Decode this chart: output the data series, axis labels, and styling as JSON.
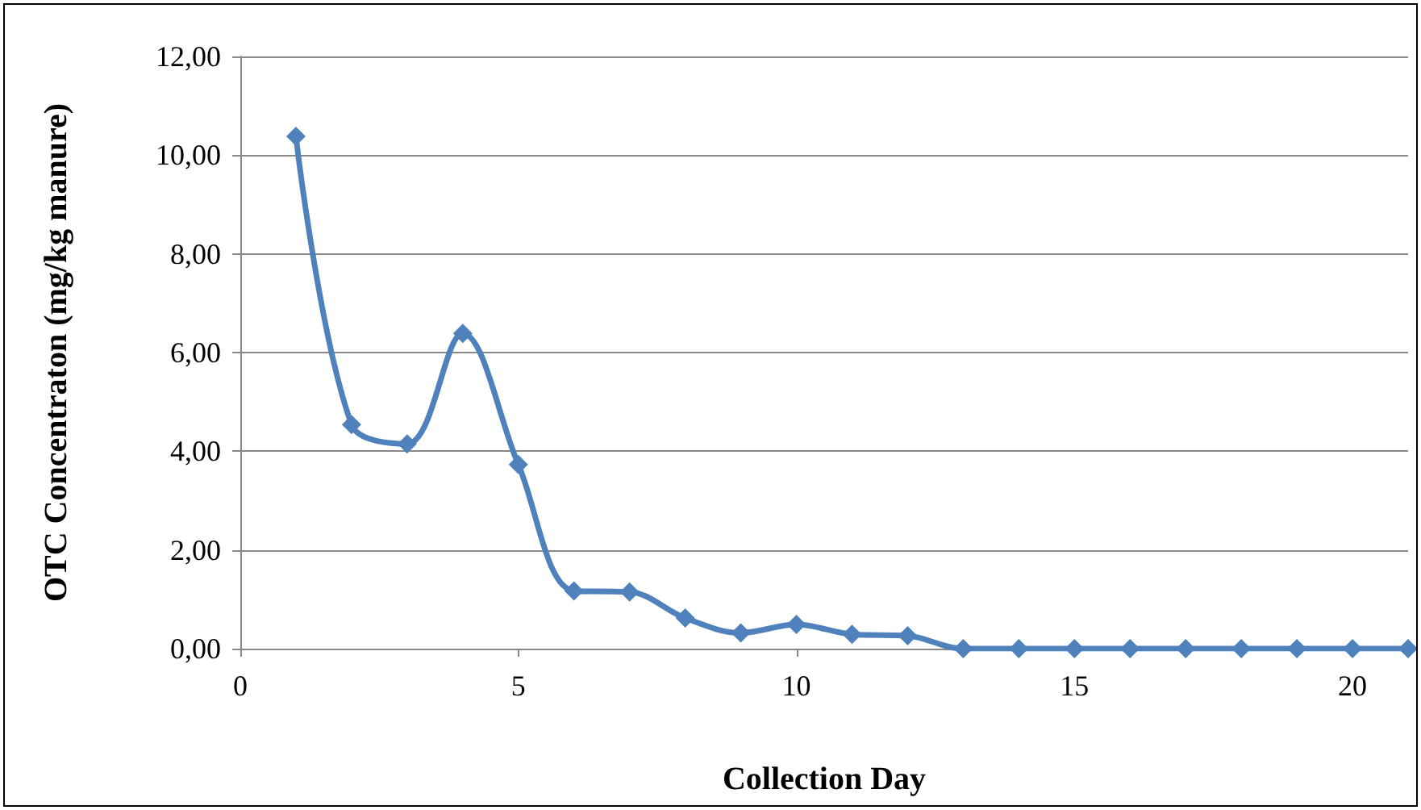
{
  "chart_data": {
    "type": "line",
    "xlabel": "Collection Day",
    "ylabel": "OTC Concentraton (mg/kg manure)",
    "x": [
      1,
      2,
      3,
      4,
      5,
      6,
      7,
      8,
      9,
      10,
      11,
      12,
      13,
      14,
      15,
      16,
      17,
      18,
      19,
      20,
      21
    ],
    "series": [
      {
        "color": "#4f81bd",
        "values": [
          10.38,
          4.54,
          4.15,
          6.39,
          3.73,
          1.17,
          1.15,
          0.62,
          0.32,
          0.49,
          0.29,
          0.26,
          0,
          0,
          0,
          0,
          0,
          0,
          0,
          0,
          0
        ]
      }
    ],
    "xlim": [
      0,
      21
    ],
    "xticks": [
      0,
      5,
      10,
      15,
      20
    ],
    "ylim": [
      0,
      12
    ],
    "yticks": [
      {
        "value": 0,
        "label": "0,00"
      },
      {
        "value": 2,
        "label": "2,00"
      },
      {
        "value": 4,
        "label": "4,00"
      },
      {
        "value": 6,
        "label": "6,00"
      },
      {
        "value": 8,
        "label": "8,00"
      },
      {
        "value": 10,
        "label": "10,00"
      },
      {
        "value": 12,
        "label": "12,00"
      }
    ],
    "grid": "y",
    "marker": "diamond",
    "line_style": "solid"
  }
}
